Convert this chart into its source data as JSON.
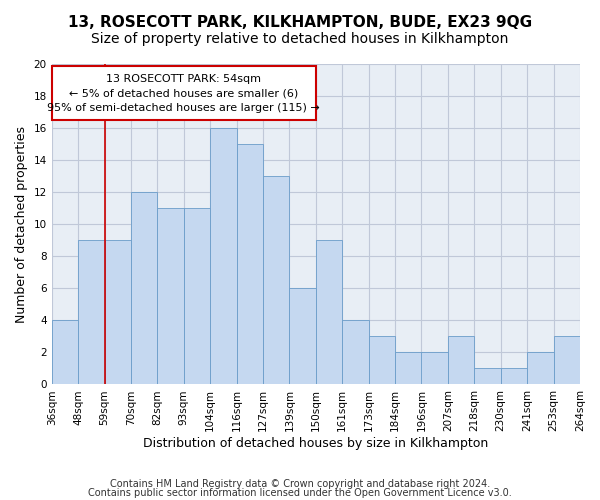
{
  "title": "13, ROSECOTT PARK, KILKHAMPTON, BUDE, EX23 9QG",
  "subtitle": "Size of property relative to detached houses in Kilkhampton",
  "xlabel": "Distribution of detached houses by size in Kilkhampton",
  "ylabel": "Number of detached properties",
  "footer1": "Contains HM Land Registry data © Crown copyright and database right 2024.",
  "footer2": "Contains public sector information licensed under the Open Government Licence v3.0.",
  "categories": [
    "36sqm",
    "48sqm",
    "59sqm",
    "70sqm",
    "82sqm",
    "93sqm",
    "104sqm",
    "116sqm",
    "127sqm",
    "139sqm",
    "150sqm",
    "161sqm",
    "173sqm",
    "184sqm",
    "196sqm",
    "207sqm",
    "218sqm",
    "230sqm",
    "241sqm",
    "253sqm",
    "264sqm"
  ],
  "values": [
    4,
    9,
    9,
    12,
    11,
    11,
    16,
    15,
    13,
    6,
    9,
    4,
    3,
    2,
    2,
    3,
    1,
    1,
    2,
    3
  ],
  "bar_color": "#c5d8f0",
  "bar_edge_color": "#6a9cc9",
  "annotation_box_color": "#ffffff",
  "annotation_box_edge": "#cc0000",
  "annotation_title": "13 ROSECOTT PARK: 54sqm",
  "annotation_line1": "← 5% of detached houses are smaller (6)",
  "annotation_line2": "95% of semi-detached houses are larger (115) →",
  "vline_x": 1.5,
  "ylim": [
    0,
    20
  ],
  "yticks": [
    0,
    2,
    4,
    6,
    8,
    10,
    12,
    14,
    16,
    18,
    20
  ],
  "grid_color": "#c0c8d8",
  "background_color": "#e8eef5",
  "title_fontsize": 11,
  "subtitle_fontsize": 10,
  "xlabel_fontsize": 9,
  "ylabel_fontsize": 9,
  "tick_fontsize": 7.5,
  "footer_fontsize": 7
}
